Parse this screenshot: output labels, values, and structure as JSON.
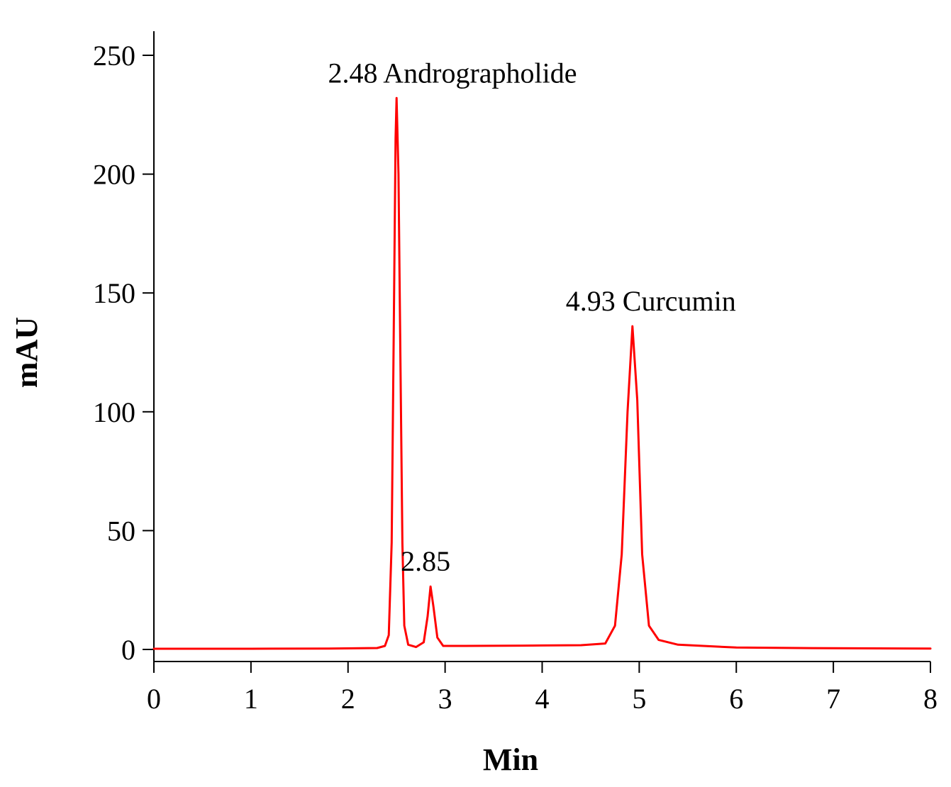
{
  "chart_data": {
    "type": "line",
    "title": "",
    "xlabel": "Min",
    "ylabel": "mAU",
    "xlim": [
      0,
      8
    ],
    "ylim": [
      0,
      250
    ],
    "x_ticks": [
      0,
      1,
      2,
      3,
      4,
      5,
      6,
      7,
      8
    ],
    "y_ticks": [
      0,
      50,
      100,
      150,
      200,
      250
    ],
    "grid": false,
    "legend": "none",
    "series": [
      {
        "color": "#ff0000",
        "points": [
          [
            0.0,
            0.3
          ],
          [
            1.0,
            0.3
          ],
          [
            1.8,
            0.4
          ],
          [
            2.3,
            0.6
          ],
          [
            2.38,
            1.5
          ],
          [
            2.42,
            6.0
          ],
          [
            2.45,
            45.0
          ],
          [
            2.47,
            130.0
          ],
          [
            2.49,
            215.0
          ],
          [
            2.5,
            232.0
          ],
          [
            2.52,
            200.0
          ],
          [
            2.54,
            120.0
          ],
          [
            2.56,
            45.0
          ],
          [
            2.58,
            10.0
          ],
          [
            2.62,
            2.0
          ],
          [
            2.7,
            1.0
          ],
          [
            2.78,
            3.0
          ],
          [
            2.82,
            14.0
          ],
          [
            2.85,
            26.5
          ],
          [
            2.88,
            18.0
          ],
          [
            2.92,
            5.0
          ],
          [
            2.98,
            1.5
          ],
          [
            3.2,
            1.5
          ],
          [
            3.8,
            1.6
          ],
          [
            4.4,
            1.8
          ],
          [
            4.65,
            2.5
          ],
          [
            4.75,
            10.0
          ],
          [
            4.82,
            40.0
          ],
          [
            4.88,
            100.0
          ],
          [
            4.93,
            136.0
          ],
          [
            4.98,
            105.0
          ],
          [
            5.03,
            40.0
          ],
          [
            5.1,
            10.0
          ],
          [
            5.2,
            4.0
          ],
          [
            5.4,
            2.0
          ],
          [
            6.0,
            0.8
          ],
          [
            7.0,
            0.5
          ],
          [
            8.0,
            0.4
          ]
        ]
      }
    ],
    "annotations": [
      {
        "text": "2.48 Andrographolide",
        "x": 2.48,
        "y": 232
      },
      {
        "text": "2.85",
        "x": 2.85,
        "y": 26.5
      },
      {
        "text": "4.93 Curcumin",
        "x": 4.93,
        "y": 136
      }
    ]
  }
}
